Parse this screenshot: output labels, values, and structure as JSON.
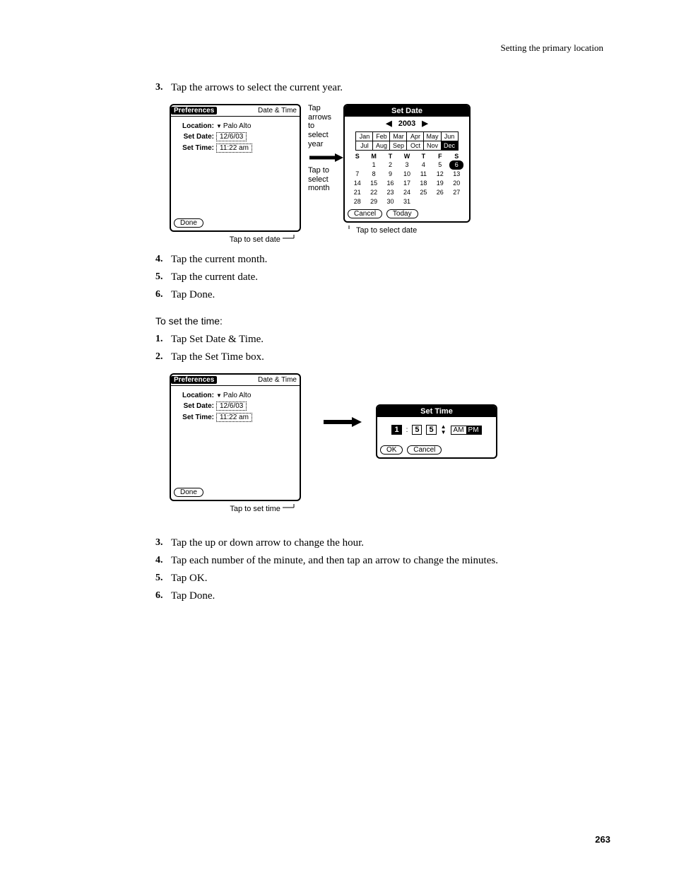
{
  "header": {
    "running_head": "Setting the primary location"
  },
  "page_number": "263",
  "steps_a": [
    {
      "num": "3.",
      "text": "Tap the arrows to select the current year."
    }
  ],
  "figure1": {
    "prefs": {
      "title_left": "Preferences",
      "title_right": "Date & Time",
      "location_label": "Location:",
      "location_value": "Palo Alto",
      "setdate_label": "Set Date:",
      "setdate_value": "12/6/03",
      "settime_label": "Set Time:",
      "settime_value": "11:22 am",
      "done": "Done"
    },
    "annot_year": "Tap arrows to select year",
    "annot_month": "Tap to select month",
    "caption_left": "Tap to set date",
    "caption_right": "Tap to select date",
    "setdate": {
      "title": "Set Date",
      "year": "2003",
      "months_row1": [
        "Jan",
        "Feb",
        "Mar",
        "Apr",
        "May",
        "Jun"
      ],
      "months_row2": [
        "Jul",
        "Aug",
        "Sep",
        "Oct",
        "Nov",
        "Dec"
      ],
      "month_selected_index": 11,
      "dow": [
        "S",
        "M",
        "T",
        "W",
        "T",
        "F",
        "S"
      ],
      "weeks": [
        [
          "",
          "1",
          "2",
          "3",
          "4",
          "5",
          "6"
        ],
        [
          "7",
          "8",
          "9",
          "10",
          "11",
          "12",
          "13"
        ],
        [
          "14",
          "15",
          "16",
          "17",
          "18",
          "19",
          "20"
        ],
        [
          "21",
          "22",
          "23",
          "24",
          "25",
          "26",
          "27"
        ],
        [
          "28",
          "29",
          "30",
          "31",
          "",
          "",
          ""
        ]
      ],
      "selected_day": "6",
      "cancel": "Cancel",
      "today": "Today"
    }
  },
  "steps_b": [
    {
      "num": "4.",
      "text": "Tap the current month."
    },
    {
      "num": "5.",
      "text": "Tap the current date."
    },
    {
      "num": "6.",
      "text": "Tap Done."
    }
  ],
  "subheading": "To set the time:",
  "steps_c": [
    {
      "num": "1.",
      "text": "Tap Set Date & Time."
    },
    {
      "num": "2.",
      "text": "Tap the Set Time box."
    }
  ],
  "figure2": {
    "caption": "Tap to set time",
    "settime": {
      "title": "Set Time",
      "hour": "1",
      "min_tens": "5",
      "min_ones": "5",
      "am": "AM",
      "pm": "PM",
      "ok": "OK",
      "cancel": "Cancel"
    }
  },
  "steps_d": [
    {
      "num": "3.",
      "text": "Tap the up or down arrow to change the hour."
    },
    {
      "num": "4.",
      "text": "Tap each number of the minute, and then tap an arrow to change the minutes."
    },
    {
      "num": "5.",
      "text": "Tap OK."
    },
    {
      "num": "6.",
      "text": "Tap Done."
    }
  ]
}
